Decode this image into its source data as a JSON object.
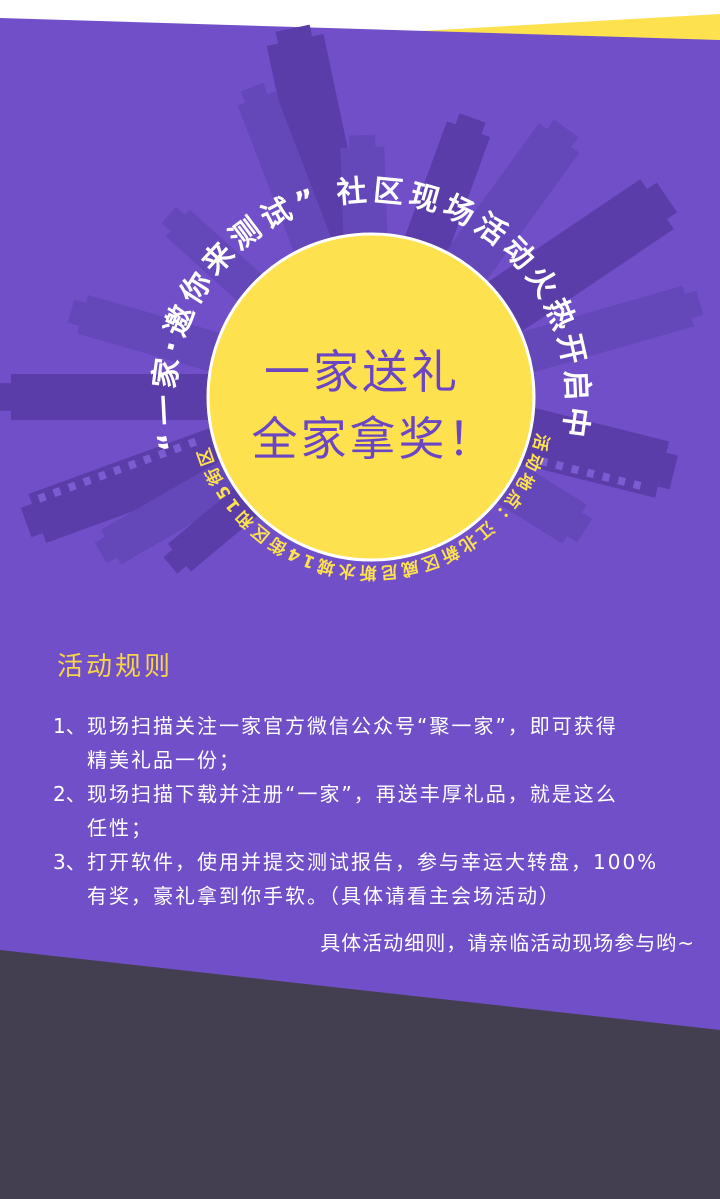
{
  "colors": {
    "purple": "#714fc8",
    "yellow": "#fde14e",
    "dark": "#433f50",
    "heading": "#f6d548",
    "center_text": "#6a46c4",
    "white": "#ffffff"
  },
  "poster": {
    "arc_title": "“一家·邀你来测试” 社区现场活动火热开启中",
    "center_line1": "一家送礼",
    "center_line2": "全家拿奖！",
    "location_arc": "活动地点：江北新区威尼斯水城14街区和15街区"
  },
  "rules": {
    "heading": "活动规则",
    "items": [
      {
        "number": "1、",
        "lines": [
          "现场扫描关注一家官方微信公众号“聚一家”，即可获得",
          "精美礼品一份；"
        ]
      },
      {
        "number": "2、",
        "lines": [
          "现场扫描下载并注册“一家”，再送丰厚礼品，就是这么",
          "任性；"
        ]
      },
      {
        "number": "3、",
        "lines": [
          "打开软件，使用并提交测试报告，参与幸运大转盘，100%",
          "有奖，豪礼拿到你手软。（具体请看主会场活动）"
        ]
      }
    ],
    "note": "具体活动细则，请亲临活动现场参与哟~"
  }
}
